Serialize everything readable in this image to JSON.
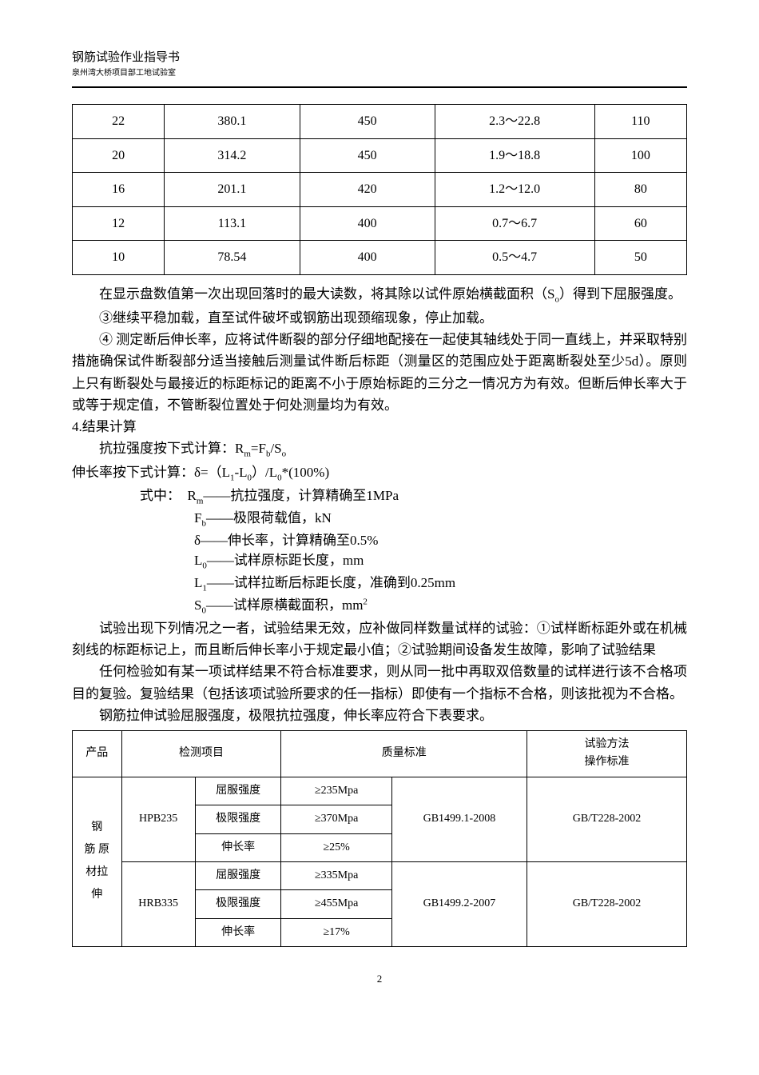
{
  "header": {
    "title": "钢筋试验作业指导书",
    "subtitle": "泉州湾大桥项目部工地试验室"
  },
  "table1": {
    "rows": [
      [
        "22",
        "380.1",
        "450",
        "2.3～22.8",
        "110"
      ],
      [
        "20",
        "314.2",
        "450",
        "1.9～18.8",
        "100"
      ],
      [
        "16",
        "201.1",
        "420",
        "1.2～12.0",
        "80"
      ],
      [
        "12",
        "113.1",
        "400",
        "0.7～6.7",
        "60"
      ],
      [
        "10",
        "78.54",
        "400",
        "0.5～4.7",
        "50"
      ]
    ],
    "col_widths": [
      "15%",
      "22%",
      "22%",
      "26%",
      "15%"
    ]
  },
  "paragraphs": {
    "p1": "在显示盘数值第一次出现回落时的最大读数，将其除以试件原始横截面积（S",
    "p1b": "）得到下屈服强度。",
    "p2": "③继续平稳加载，直至试件破坏或钢筋出现颈缩现象，停止加载。",
    "p3": "④ 测定断后伸长率，应将试件断裂的部分仔细地配接在一起使其轴线处于同一直线上，并采取特别措施确保试件断裂部分适当接触后测量试件断后标距（测量区的范围应处于距离断裂处至少5d）。原则上只有断裂处与最接近的标距标记的距离不小于原始标距的三分之一情况方为有效。但断后伸长率大于或等于规定值，不管断裂位置处于何处测量均为有效。",
    "section4": "4.结果计算",
    "p4": "抗拉强度按下式计算：R",
    "p4b": "=F",
    "p4c": "/S",
    "p5": "伸长率按下式计算：δ=（L",
    "p5b": "-L",
    "p5c": "）/L",
    "p5d": "*(100%)",
    "f_label": "式中：",
    "f1a": "R",
    "f1b": "――抗拉强度，计算精确至1MPa",
    "f2a": "F",
    "f2b": "――极限荷载值，kN",
    "f3": "δ――伸长率，计算精确至0.5%",
    "f4a": "L",
    "f4b": "――试样原标距长度，mm",
    "f5a": "L",
    "f5b": "――试样拉断后标距长度，准确到0.25mm",
    "f6a": "S",
    "f6b": "――试样原横截面积，mm",
    "p6": "试验出现下列情况之一者，试验结果无效，应补做同样数量试样的试验：①试样断标距外或在机械刻线的标距标记上，而且断后伸长率小于规定最小值；②试验期间设备发生故障，影响了试验结果",
    "p7": "任何检验如有某一项试样结果不符合标准要求，则从同一批中再取双倍数量的试样进行该不合格项目的复验。复验结果（包括该项试验所要求的任一指标）即使有一个指标不合格，则该批视为不合格。",
    "p8": "钢筋拉伸试验屈服强度，极限抗拉强度，伸长率应符合下表要求。"
  },
  "table2": {
    "headers": [
      "产品",
      "检测项目",
      "质量标准",
      "试验方法操作标准"
    ],
    "header_sub": [
      "检测项目",
      "",
      "质量标准",
      "",
      "试验方法",
      "操作标准"
    ],
    "product": "钢筋 原材拉伸",
    "rows": [
      {
        "grade": "HPB235",
        "items": [
          {
            "name": "屈服强度",
            "value": "≥235Mpa"
          },
          {
            "name": "极限强度",
            "value": "≥370Mpa"
          },
          {
            "name": "伸长率",
            "value": "≥25%"
          }
        ],
        "standard": "GB1499.1-2008",
        "method": "GB/T228-2002"
      },
      {
        "grade": "HRB335",
        "items": [
          {
            "name": "屈服强度",
            "value": "≥335Mpa"
          },
          {
            "name": "极限强度",
            "value": "≥455Mpa"
          },
          {
            "name": "伸长率",
            "value": "≥17%"
          }
        ],
        "standard": "GB1499.2-2007",
        "method": "GB/T228-2002"
      }
    ]
  },
  "page_number": "2"
}
